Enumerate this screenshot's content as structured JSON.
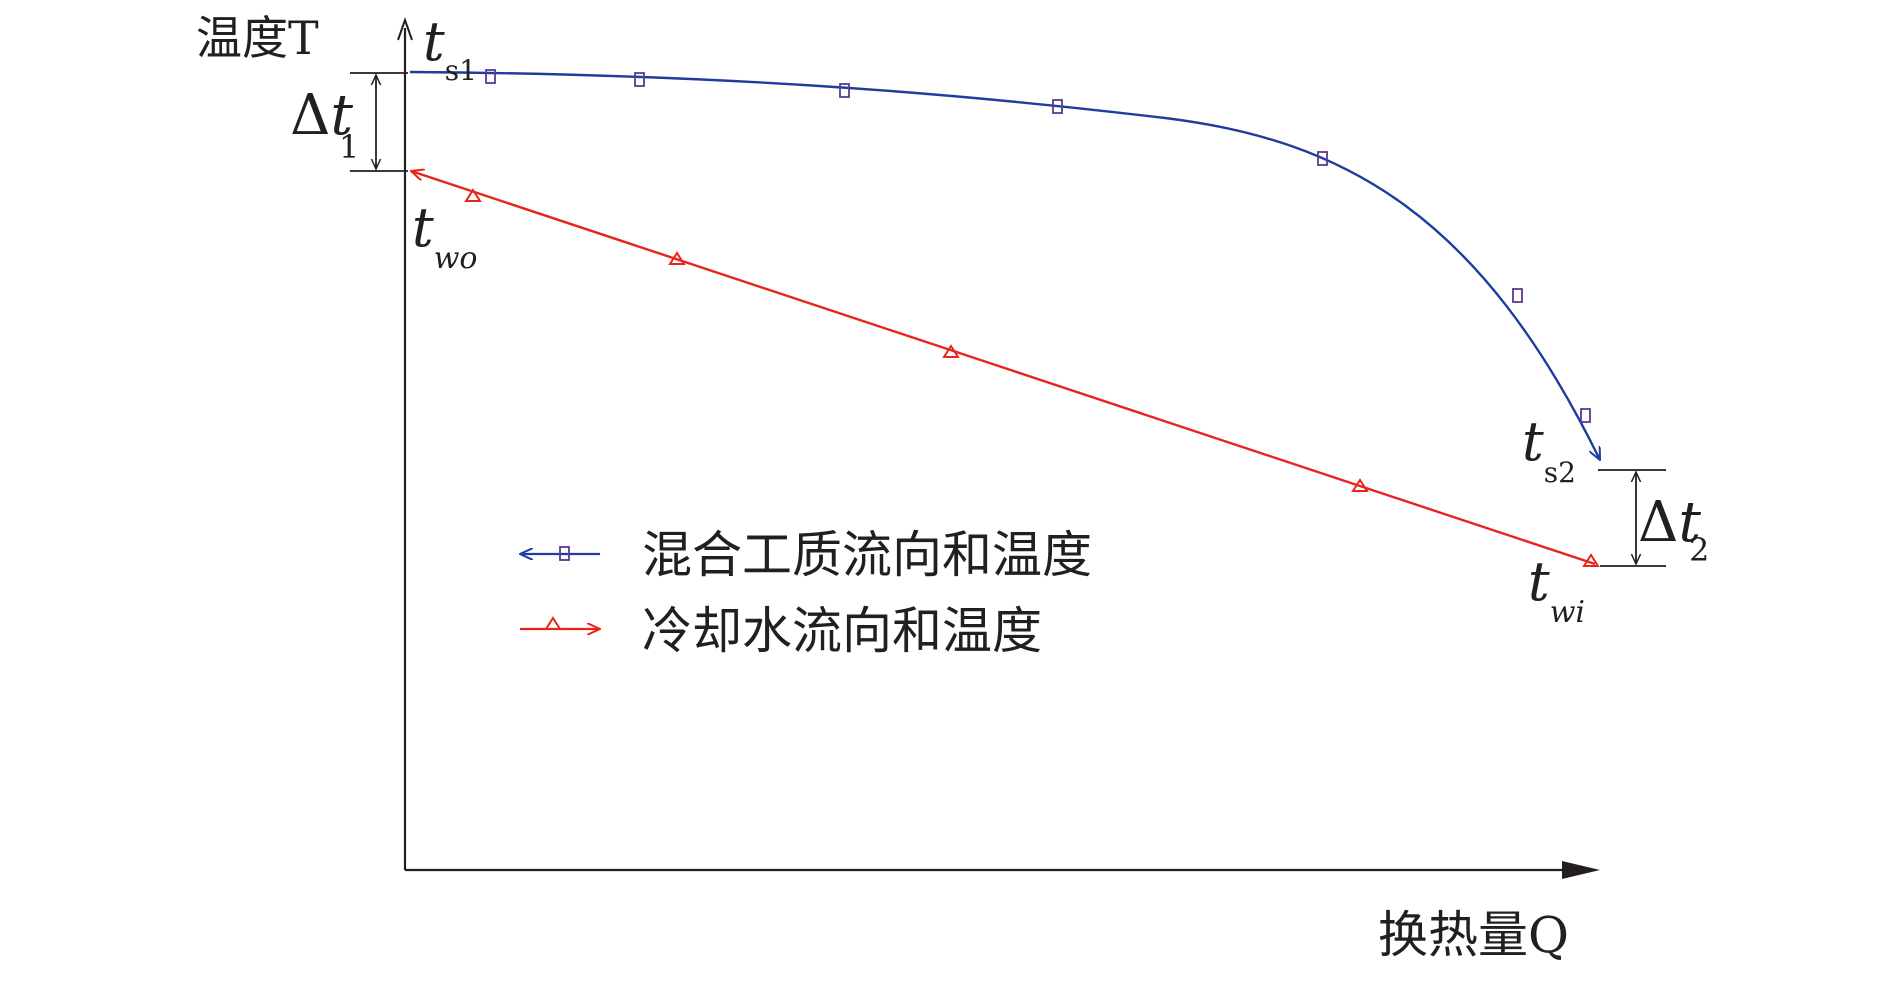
{
  "axes": {
    "y_label": "温度T",
    "x_label": "换热量Q"
  },
  "colors": {
    "axis": "#231f20",
    "mixture": "#1f3c9e",
    "marker_square": "#5a3a92",
    "water": "#e8251c"
  },
  "annotations": {
    "ts1": {
      "main": "t",
      "sub": "s1"
    },
    "ts2": {
      "main": "t",
      "sub": "s2"
    },
    "two": {
      "main": "t",
      "sub": "wo"
    },
    "twi": {
      "main": "t",
      "sub": "wi"
    },
    "dt1": {
      "prefix": "Δ",
      "main": "t",
      "sub": "1"
    },
    "dt2": {
      "prefix": "Δ",
      "main": "t",
      "sub": "2"
    }
  },
  "legend": [
    {
      "label": "混合工质流向和温度",
      "marker": "square",
      "direction": "left"
    },
    {
      "label": "冷却水流向和温度",
      "marker": "triangle",
      "direction": "right"
    }
  ]
}
